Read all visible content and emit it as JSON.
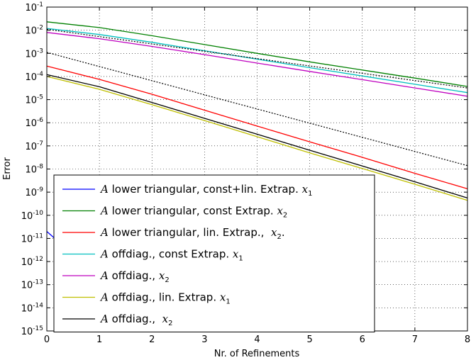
{
  "chart_data": {
    "type": "line",
    "title": "",
    "xlabel": "Nr. of Refinements",
    "ylabel": "Error",
    "xlim": [
      0,
      8
    ],
    "ylim_exponents": [
      -15,
      -1
    ],
    "y_scale": "log",
    "x_ticks": [
      "0",
      "1",
      "2",
      "3",
      "4",
      "5",
      "6",
      "7",
      "8"
    ],
    "y_tick_base": "10",
    "y_tick_exponents": [
      "-15",
      "-14",
      "-13",
      "-12",
      "-11",
      "-10",
      "-9",
      "-8",
      "-7",
      "-6",
      "-5",
      "-4",
      "-3",
      "-2",
      "-1"
    ],
    "grid": true,
    "legend_position": "lower-left",
    "series": [
      {
        "name": "A lower triangular, const+lin. Extrap. x1",
        "legend_prefix": "A",
        "legend_text": " lower triangular, const+lin. Extrap. ",
        "legend_var": "x",
        "legend_sub": "1",
        "legend_suffix": "",
        "color": "#0000ff",
        "x": [
          0,
          0.5,
          1,
          2,
          3,
          4,
          5,
          6
        ],
        "y": [
          2e-11,
          2e-12,
          1e-13,
          2e-14,
          1.6e-15,
          1.6e-15,
          2e-15,
          1.4e-15
        ]
      },
      {
        "name": "A lower triangular, const Extrap. x2",
        "legend_prefix": "A",
        "legend_text": " lower triangular, const Extrap. ",
        "legend_var": "x",
        "legend_sub": "2",
        "legend_suffix": "",
        "color": "#008000",
        "x": [
          0,
          1,
          2,
          3,
          4,
          5,
          6,
          7,
          8
        ],
        "y": [
          0.023,
          0.013,
          0.0058,
          0.0024,
          0.001,
          0.00043,
          0.00019,
          8.5e-05,
          3.7e-05
        ]
      },
      {
        "name": "A lower triangular, lin. Extrap., x2.",
        "legend_prefix": "A",
        "legend_text": " lower triangular, lin. Extrap.,  ",
        "legend_var": "x",
        "legend_sub": "2",
        "legend_suffix": ".",
        "color": "#ff0000",
        "x": [
          0,
          1,
          2,
          3,
          4,
          5,
          6,
          7,
          8
        ],
        "y": [
          0.00028,
          7.5e-05,
          1.7e-05,
          3.5e-06,
          7.2e-07,
          1.5e-07,
          3.2e-08,
          6.5e-09,
          1.4e-09
        ]
      },
      {
        "name": "A offdiag., const Extrap. x1",
        "legend_prefix": "A",
        "legend_text": " offdiag., const Extrap. ",
        "legend_var": "x",
        "legend_sub": "1",
        "legend_suffix": "",
        "color": "#00bfbf",
        "x": [
          0,
          1,
          2,
          3,
          4,
          5,
          6,
          7,
          8
        ],
        "y": [
          0.012,
          0.0065,
          0.003,
          0.0013,
          0.00056,
          0.00024,
          0.000105,
          4.6e-05,
          2e-05
        ]
      },
      {
        "name": "A offdiag., x2",
        "legend_prefix": "A",
        "legend_text": " offdiag., ",
        "legend_var": "x",
        "legend_sub": "2",
        "legend_suffix": "",
        "color": "#bf00bf",
        "x": [
          0,
          1,
          2,
          3,
          4,
          5,
          6,
          7,
          8
        ],
        "y": [
          0.008,
          0.0043,
          0.002,
          0.00088,
          0.00038,
          0.000165,
          7.3e-05,
          3.2e-05,
          1.4e-05
        ]
      },
      {
        "name": "A offdiag., lin. Extrap. x1",
        "legend_prefix": "A",
        "legend_text": " offdiag., lin. Extrap. ",
        "legend_var": "x",
        "legend_sub": "1",
        "legend_suffix": "",
        "color": "#bfbf00",
        "x": [
          0,
          1,
          2,
          3,
          4,
          5,
          6,
          7,
          8
        ],
        "y": [
          0.0001,
          2.8e-05,
          6e-06,
          1.25e-06,
          2.5e-07,
          5e-08,
          1.05e-08,
          2.2e-09,
          4.4e-10
        ]
      },
      {
        "name": "A offdiag., x2",
        "legend_prefix": "A",
        "legend_text": " offdiag.,  ",
        "legend_var": "x",
        "legend_sub": "2",
        "legend_suffix": "",
        "color": "#000000",
        "x": [
          0,
          1,
          2,
          3,
          4,
          5,
          6,
          7,
          8
        ],
        "y": [
          0.00012,
          3.6e-05,
          7.5e-06,
          1.55e-06,
          3.2e-07,
          6.5e-08,
          1.35e-08,
          2.8e-09,
          5.6e-10
        ]
      }
    ],
    "reference_lines": [
      {
        "color": "#000000",
        "style": "dotted",
        "x": [
          0,
          8
        ],
        "y": [
          0.0011,
          1.4e-08
        ]
      },
      {
        "color": "#000000",
        "style": "dotted",
        "x": [
          0,
          8
        ],
        "y": [
          0.011,
          3.2e-05
        ]
      }
    ]
  }
}
